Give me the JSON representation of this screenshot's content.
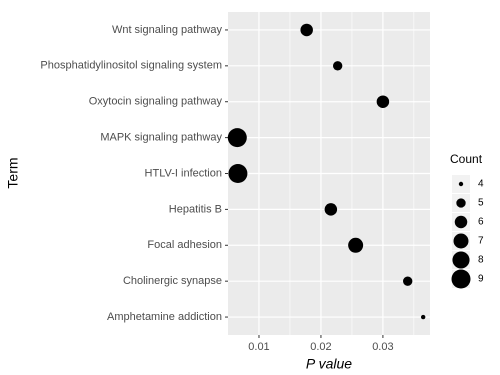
{
  "chart_data": {
    "type": "scatter",
    "categories": [
      "Wnt signaling pathway",
      "Phosphatidylinositol signaling system",
      "Oxytocin signaling pathway",
      "MAPK signaling pathway",
      "HTLV-I infection",
      "Hepatitis B",
      "Focal adhesion",
      "Cholinergic synapse",
      "Amphetamine addiction"
    ],
    "values": [
      0.0177,
      0.0227,
      0.03,
      0.0065,
      0.0066,
      0.0216,
      0.0256,
      0.034,
      0.0365
    ],
    "sizes": [
      6,
      5,
      6,
      9,
      9,
      6,
      7,
      5,
      4
    ],
    "color": "#000000",
    "xlim": [
      0.005,
      0.0376
    ],
    "xticks": [
      0.01,
      0.02,
      0.03
    ],
    "x_label": "P value",
    "y_label": "Term",
    "grid": true,
    "size_legend": {
      "title": "Count",
      "values": [
        4,
        5,
        6,
        7,
        8,
        9
      ]
    }
  }
}
